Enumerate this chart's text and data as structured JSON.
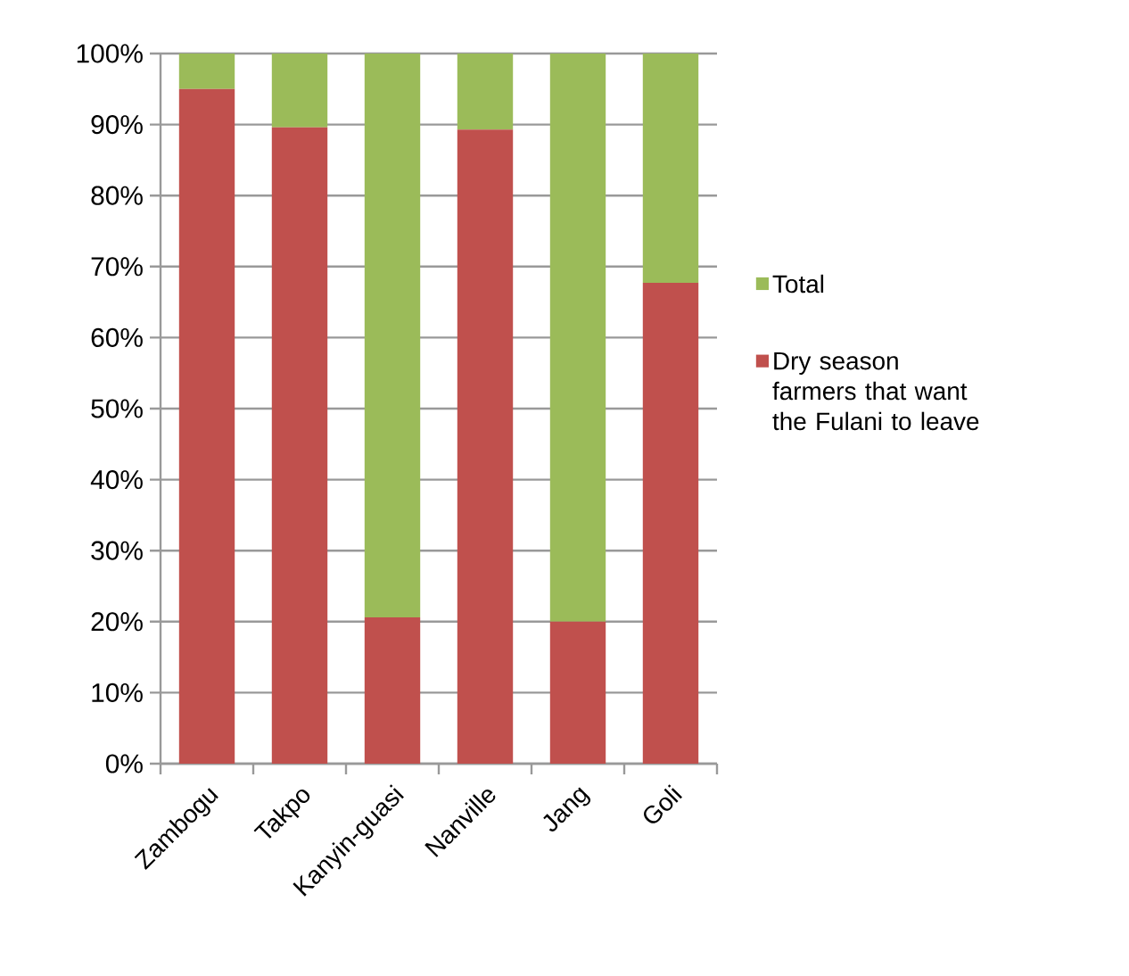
{
  "chart_data": {
    "type": "bar",
    "stacked": true,
    "categories": [
      "Zambogu",
      "Takpo",
      "Kanyin-guasi",
      "Nanville",
      "Jang",
      "Goli"
    ],
    "series": [
      {
        "name": "Dry season farmers that want the Fulani to leave",
        "color": "#c0504d",
        "values": [
          95,
          89.6,
          20.6,
          89.3,
          20,
          67.7
        ]
      },
      {
        "name": "Total",
        "color": "#9bbb59",
        "values": [
          5,
          10.4,
          79.4,
          10.7,
          80,
          32.3
        ]
      }
    ],
    "ylim": [
      0,
      100
    ],
    "yticks": [
      {
        "value": 0,
        "label": "0%"
      },
      {
        "value": 10,
        "label": "10%"
      },
      {
        "value": 20,
        "label": "20%"
      },
      {
        "value": 30,
        "label": "30%"
      },
      {
        "value": 40,
        "label": "40%"
      },
      {
        "value": 50,
        "label": "50%"
      },
      {
        "value": 60,
        "label": "60%"
      },
      {
        "value": 70,
        "label": "70%"
      },
      {
        "value": 80,
        "label": "80%"
      },
      {
        "value": 90,
        "label": "90%"
      },
      {
        "value": 100,
        "label": "100%"
      }
    ],
    "grid": "y",
    "legend": "right"
  }
}
